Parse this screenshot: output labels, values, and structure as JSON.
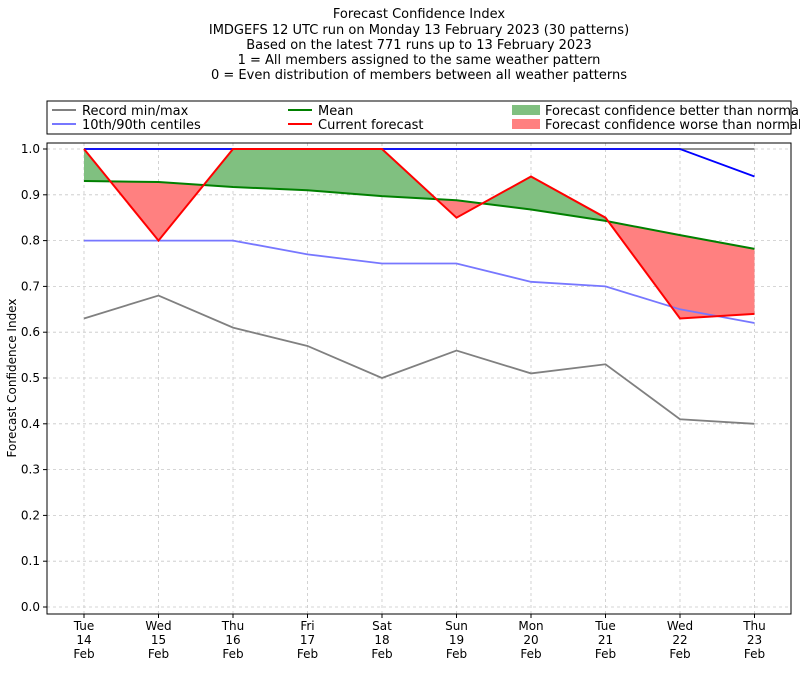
{
  "chart_data": {
    "type": "line",
    "title_lines": [
      "Forecast Confidence Index",
      "IMDGEFS 12 UTC run on Monday 13 February 2023 (30 patterns)",
      "Based on the latest 771 runs up to 13 February 2023",
      "1 = All members assigned to the same weather pattern",
      "0 = Even distribution of members between all weather patterns"
    ],
    "ylabel": "Forecast Confidence Index",
    "ylim": [
      0,
      1.0
    ],
    "yticks": [
      "0.0",
      "0.1",
      "0.2",
      "0.3",
      "0.4",
      "0.5",
      "0.6",
      "0.7",
      "0.8",
      "0.9",
      "1.0"
    ],
    "grid": true,
    "legend_position": "top, above plot",
    "categories": [
      [
        "Tue",
        "14",
        "Feb"
      ],
      [
        "Wed",
        "15",
        "Feb"
      ],
      [
        "Thu",
        "16",
        "Feb"
      ],
      [
        "Fri",
        "17",
        "Feb"
      ],
      [
        "Sat",
        "18",
        "Feb"
      ],
      [
        "Sun",
        "19",
        "Feb"
      ],
      [
        "Mon",
        "20",
        "Feb"
      ],
      [
        "Tue",
        "21",
        "Feb"
      ],
      [
        "Wed",
        "22",
        "Feb"
      ],
      [
        "Thu",
        "23",
        "Feb"
      ]
    ],
    "series": [
      {
        "key": "record_min",
        "name": "Record min/max",
        "color": "#808080",
        "values": [
          0.63,
          0.68,
          0.61,
          0.57,
          0.5,
          0.56,
          0.51,
          0.53,
          0.41,
          0.4
        ]
      },
      {
        "key": "record_max",
        "name": "Record min/max",
        "color": "#808080",
        "values": [
          1.0,
          1.0,
          1.0,
          1.0,
          1.0,
          1.0,
          1.0,
          1.0,
          1.0,
          1.0
        ]
      },
      {
        "key": "p10",
        "name": "10th/90th centiles",
        "color": "#7777ff",
        "values": [
          0.8,
          0.8,
          0.8,
          0.77,
          0.75,
          0.75,
          0.71,
          0.7,
          0.65,
          0.62
        ]
      },
      {
        "key": "p90",
        "name": "10th/90th centiles",
        "color": "#0000ff",
        "values": [
          1.0,
          1.0,
          1.0,
          1.0,
          1.0,
          1.0,
          1.0,
          1.0,
          1.0,
          0.94
        ]
      },
      {
        "key": "mean",
        "name": "Mean",
        "color": "#008000",
        "values": [
          0.93,
          0.928,
          0.917,
          0.91,
          0.897,
          0.888,
          0.868,
          0.843,
          0.812,
          0.782
        ]
      },
      {
        "key": "current",
        "name": "Current forecast",
        "color": "#ff0000",
        "values": [
          1.0,
          0.8,
          1.0,
          1.0,
          1.0,
          0.85,
          0.94,
          0.85,
          0.63,
          0.64
        ]
      }
    ],
    "legend": [
      {
        "label": "Record min/max",
        "kind": "line",
        "color": "#808080"
      },
      {
        "label": "10th/90th centiles",
        "kind": "line",
        "color": "#7777ff"
      },
      {
        "label": "Mean",
        "kind": "line",
        "color": "#008000"
      },
      {
        "label": "Current forecast",
        "kind": "line",
        "color": "#ff0000"
      },
      {
        "label": "Forecast confidence better than normal",
        "kind": "patch",
        "color": "#80c080"
      },
      {
        "label": "Forecast confidence worse than normal",
        "kind": "patch",
        "color": "#ff8080"
      }
    ],
    "fill_colors": {
      "better": "#80c080",
      "worse": "#ff8080"
    }
  }
}
